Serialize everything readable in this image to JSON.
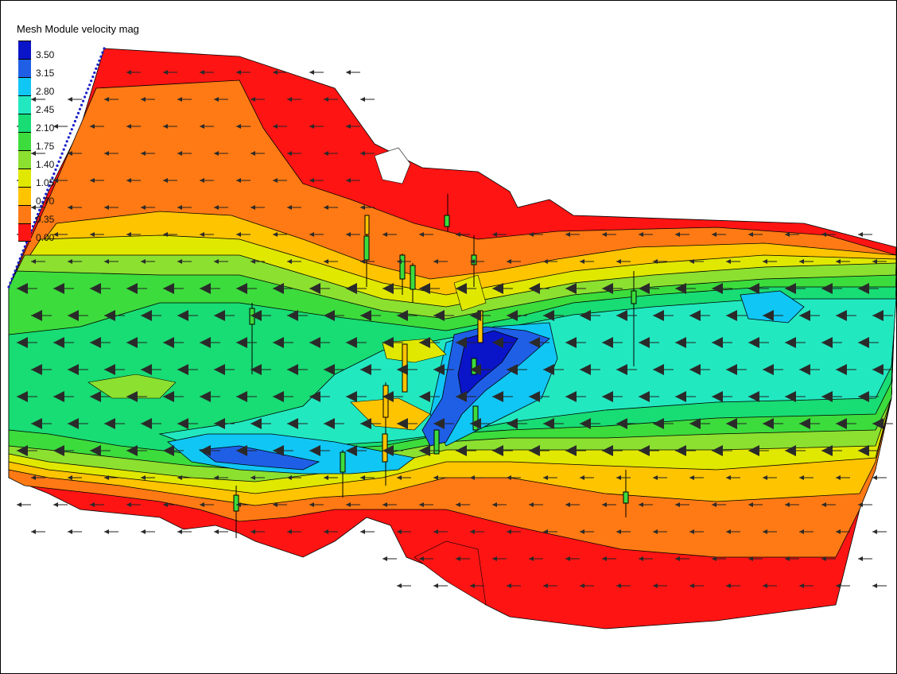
{
  "legend": {
    "title": "Mesh Module velocity mag",
    "entries": [
      {
        "label": "3.50",
        "color": "#0a14c8"
      },
      {
        "label": "3.15",
        "color": "#1f5fe6"
      },
      {
        "label": "2.80",
        "color": "#10c6f4"
      },
      {
        "label": "2.45",
        "color": "#22e8c0"
      },
      {
        "label": "2.10",
        "color": "#18dc74"
      },
      {
        "label": "1.75",
        "color": "#3cdc3c"
      },
      {
        "label": "1.40",
        "color": "#8ce030"
      },
      {
        "label": "1.05",
        "color": "#e0e800"
      },
      {
        "label": "0.70",
        "color": "#ffc400"
      },
      {
        "label": "0.35",
        "color": "#ff7a14"
      },
      {
        "label": "0.00",
        "color": "#ff1414"
      }
    ]
  }
}
